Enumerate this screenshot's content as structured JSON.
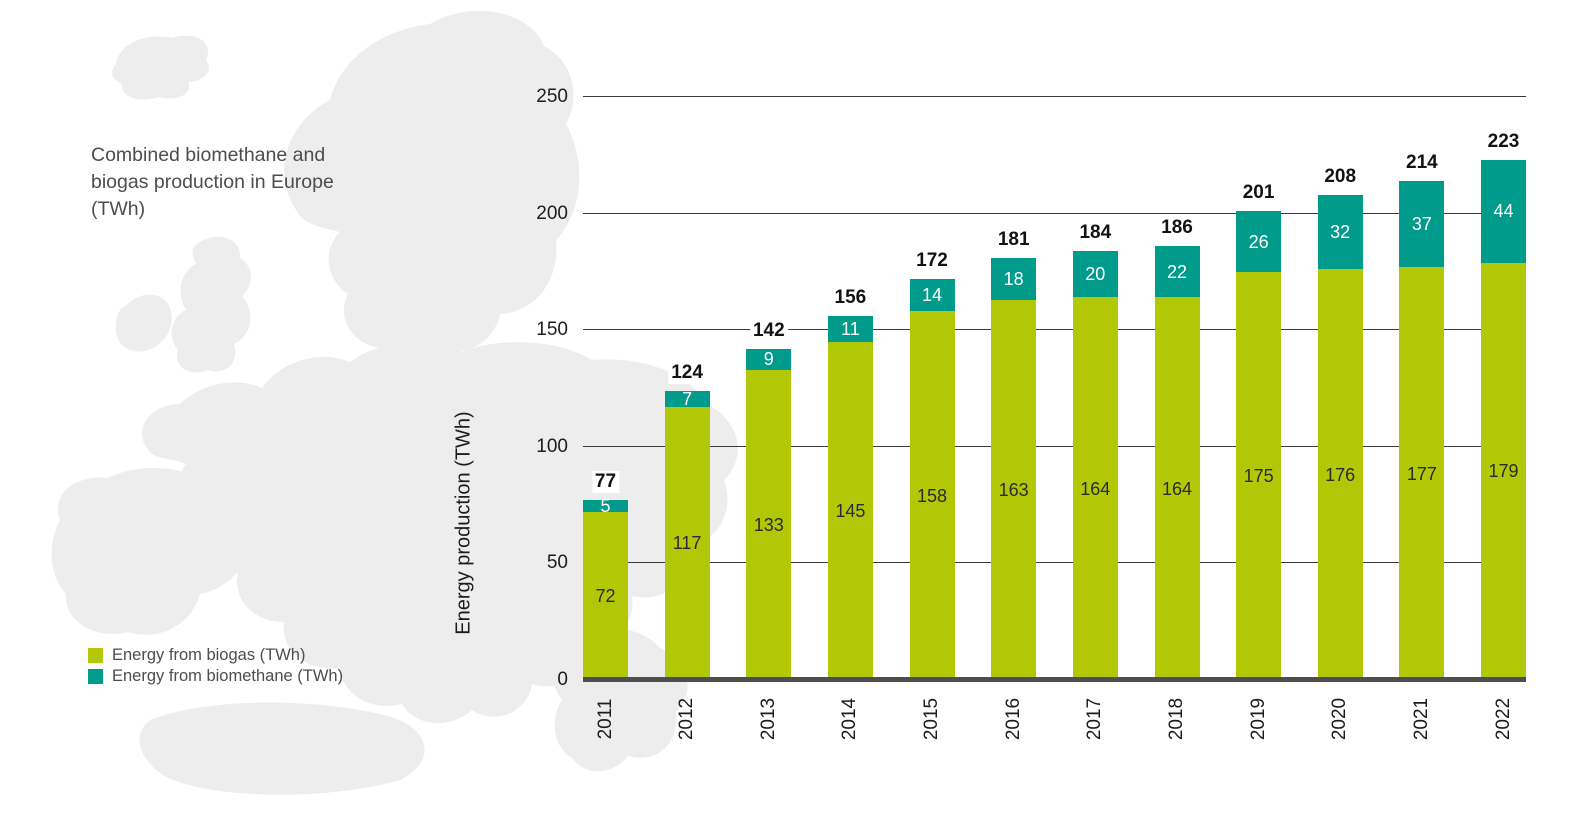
{
  "chart_data": {
    "type": "bar",
    "stacked": true,
    "title": "Combined biomethane and biogas production in Europe (TWh)",
    "ylabel": "Energy production (TWh)",
    "ylim": [
      0,
      250
    ],
    "yticks": [
      0,
      50,
      100,
      150,
      200,
      250
    ],
    "grid": true,
    "legend_position": "bottom-left",
    "categories": [
      "2011",
      "2012",
      "2013",
      "2014",
      "2015",
      "2016",
      "2017",
      "2018",
      "2019",
      "2020",
      "2021",
      "2022"
    ],
    "series": [
      {
        "name": "Energy from biogas (TWh)",
        "color": "#b2c806",
        "label_color": "#2b2b2b",
        "values": [
          72,
          117,
          133,
          145,
          158,
          163,
          164,
          164,
          175,
          176,
          177,
          179
        ]
      },
      {
        "name": "Energy from biomethane (TWh)",
        "color": "#009b8a",
        "label_color": "#ffffff",
        "values": [
          5,
          7,
          9,
          11,
          14,
          18,
          20,
          22,
          26,
          32,
          37,
          44
        ]
      }
    ],
    "totals": [
      77,
      124,
      142,
      156,
      172,
      181,
      184,
      186,
      201,
      208,
      214,
      223
    ],
    "colors": {
      "grid": "#3a3a3a",
      "axis_line": "#4e4e4e",
      "tick_text": "#1c1c1c",
      "total_text": "#121212",
      "title_text": "#4d4d4d",
      "map": "#ededed",
      "background": "#ffffff"
    }
  }
}
